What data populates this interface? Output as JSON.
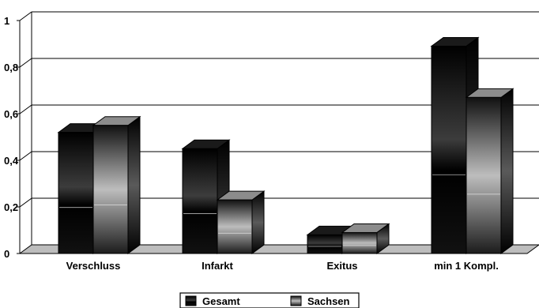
{
  "chart_data": {
    "type": "bar",
    "title": "",
    "xlabel": "",
    "ylabel": "",
    "ylim": [
      0,
      1
    ],
    "yticks": [
      0,
      0.2,
      0.4,
      0.6,
      0.8,
      1
    ],
    "ytick_labels": [
      "0",
      "0,2",
      "0,4",
      "0,6",
      "0,8",
      "1"
    ],
    "grid": true,
    "three_d": true,
    "categories": [
      "Verschluss",
      "Infarkt",
      "Exitus",
      "min 1 Kompl."
    ],
    "series": [
      {
        "name": "Gesamt",
        "values": [
          0.52,
          0.45,
          0.08,
          0.89
        ],
        "color": "#000000"
      },
      {
        "name": "Sachsen",
        "values": [
          0.55,
          0.23,
          0.09,
          0.67
        ],
        "color": "#9a9a9a"
      }
    ],
    "legend": {
      "position": "bottom-center"
    }
  }
}
